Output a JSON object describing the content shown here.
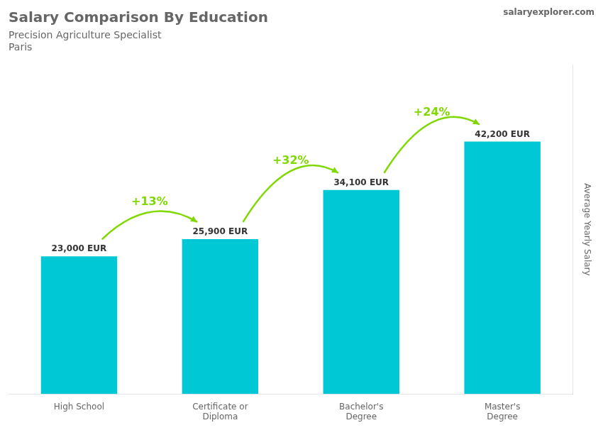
{
  "chart_data": {
    "type": "bar",
    "title": "Salary Comparison By Education",
    "subtitle": [
      "Precision Agriculture Specialist",
      "Paris"
    ],
    "watermark": "salaryexplorer.com",
    "ylabel": "Average Yearly Salary",
    "categories": [
      "High School",
      "Certificate or\nDiploma",
      "Bachelor's\nDegree",
      "Master's\nDegree"
    ],
    "values": [
      23000,
      25900,
      34100,
      42200
    ],
    "value_labels": [
      "23,000 EUR",
      "25,900 EUR",
      "34,100 EUR",
      "42,200 EUR"
    ],
    "data_labels": true,
    "color": "#00C8D4",
    "annotations": [
      {
        "text": "+13%",
        "color": "#7FD900"
      },
      {
        "text": "+32%",
        "color": "#7FD900"
      },
      {
        "text": "+24%",
        "color": "#7FD900"
      }
    ],
    "ylim": [
      0,
      55000
    ],
    "tick_labels": "x",
    "grid": false
  }
}
